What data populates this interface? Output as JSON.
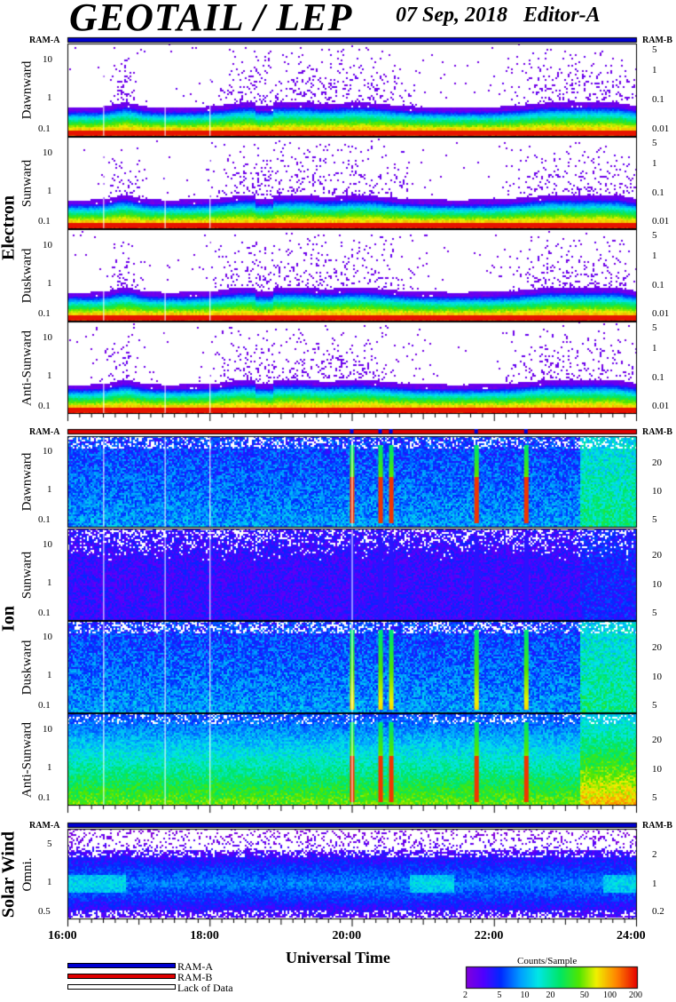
{
  "title": "GEOTAIL / LEP",
  "date": "07 Sep, 2018",
  "editor": "Editor-A",
  "colors": {
    "ram_a": "#0000d0",
    "ram_b": "#e00000",
    "lack": "#ffffff"
  },
  "groups": {
    "electron": "Electron",
    "ion": "Ion",
    "solar_wind": "Solar Wind"
  },
  "ram_a_label": "RAM-A",
  "ram_b_label": "RAM-B",
  "legend": {
    "ram_a": "RAM-A",
    "ram_b": "RAM-B",
    "lack": "Lack of Data"
  },
  "colorbar": {
    "title": "Counts/Sample",
    "ticks": [
      "2",
      "5",
      "10",
      "20",
      "50",
      "100",
      "200"
    ],
    "log_range": [
      2,
      200
    ]
  },
  "chart_data": [
    {
      "type": "heatmap",
      "group": "Electron",
      "panel": "Dawnward",
      "ylabel": "Dawnward",
      "y_ticks": [
        "10",
        "1",
        "0.1"
      ],
      "right_ticks": [
        "5",
        "1",
        "0.1",
        "0.01"
      ],
      "x_range": [
        "16:00",
        "24:00"
      ],
      "y_scale": "log",
      "ram_bar": "RAM-A"
    },
    {
      "type": "heatmap",
      "group": "Electron",
      "panel": "Sunward",
      "ylabel": "Sunward",
      "y_ticks": [
        "10",
        "1",
        "0.1"
      ],
      "right_ticks": [
        "5",
        "1",
        "0.1",
        "0.01"
      ],
      "x_range": [
        "16:00",
        "24:00"
      ],
      "y_scale": "log"
    },
    {
      "type": "heatmap",
      "group": "Electron",
      "panel": "Duskward",
      "ylabel": "Duskward",
      "y_ticks": [
        "10",
        "1",
        "0.1"
      ],
      "right_ticks": [
        "5",
        "1",
        "0.1",
        "0.01"
      ],
      "x_range": [
        "16:00",
        "24:00"
      ],
      "y_scale": "log"
    },
    {
      "type": "heatmap",
      "group": "Electron",
      "panel": "Anti-Sunward",
      "ylabel": "Anti-Sunward",
      "y_ticks": [
        "10",
        "1",
        "0.1"
      ],
      "right_ticks": [
        "5",
        "1",
        "0.1",
        "0.01"
      ],
      "x_range": [
        "16:00",
        "24:00"
      ],
      "y_scale": "log"
    },
    {
      "type": "heatmap",
      "group": "Ion",
      "panel": "Dawnward",
      "ylabel": "Dawnward",
      "y_ticks": [
        "10",
        "1",
        "0.1"
      ],
      "right_ticks": [
        "20",
        "10",
        "5"
      ],
      "x_range": [
        "16:00",
        "24:00"
      ],
      "y_scale": "log",
      "ram_bar": "RAM-B",
      "injection_times": [
        "20:00",
        "20:24",
        "20:33",
        "21:45",
        "22:27"
      ]
    },
    {
      "type": "heatmap",
      "group": "Ion",
      "panel": "Sunward",
      "ylabel": "Sunward",
      "y_ticks": [
        "10",
        "1",
        "0.1"
      ],
      "right_ticks": [
        "20",
        "10",
        "5"
      ],
      "x_range": [
        "16:00",
        "24:00"
      ],
      "y_scale": "log"
    },
    {
      "type": "heatmap",
      "group": "Ion",
      "panel": "Duskward",
      "ylabel": "Duskward",
      "y_ticks": [
        "10",
        "1",
        "0.1"
      ],
      "right_ticks": [
        "20",
        "10",
        "5"
      ],
      "x_range": [
        "16:00",
        "24:00"
      ],
      "y_scale": "log"
    },
    {
      "type": "heatmap",
      "group": "Ion",
      "panel": "Anti-Sunward",
      "ylabel": "Anti-Sunward",
      "y_ticks": [
        "10",
        "1",
        "0.1"
      ],
      "right_ticks": [
        "20",
        "10",
        "5"
      ],
      "x_range": [
        "16:00",
        "24:00"
      ],
      "y_scale": "log",
      "injection_times": [
        "20:00",
        "20:24",
        "20:33",
        "21:45",
        "22:27"
      ]
    },
    {
      "type": "heatmap",
      "group": "Solar Wind",
      "panel": "Omni.",
      "ylabel": "Omni.",
      "y_ticks": [
        "5",
        "1",
        "0.5"
      ],
      "right_ticks": [
        "2",
        "1",
        "0.2"
      ],
      "x_range": [
        "16:00",
        "24:00"
      ],
      "y_scale": "log",
      "ram_bar": "RAM-A"
    }
  ],
  "x_ticks": [
    "16:00",
    "18:00",
    "20:00",
    "22:00",
    "24:00"
  ],
  "xlabel": "Universal Time"
}
